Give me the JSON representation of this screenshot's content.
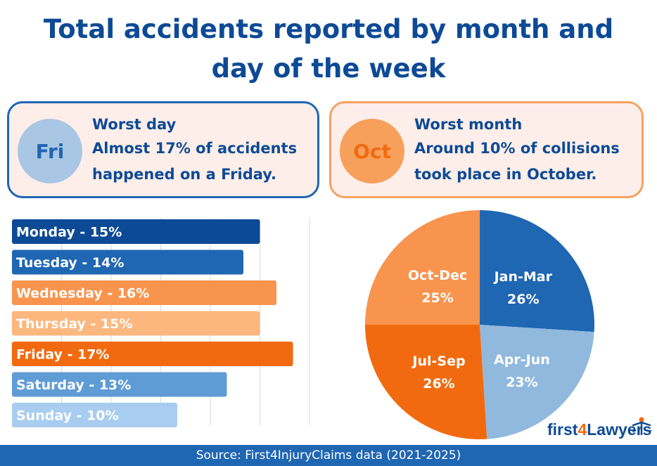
{
  "title_line1": "Total accidents reported by month and",
  "title_line2": "day of the week",
  "worst_day": {
    "badge": "Fri",
    "heading": "Worst day",
    "line1": "Almost 17% of accidents",
    "line2": "happened on a Friday."
  },
  "worst_month": {
    "badge": "Oct",
    "heading": "Worst month",
    "line1": "Around 10% of collisions",
    "line2": "took place in October."
  },
  "chart_data": [
    {
      "type": "bar",
      "orientation": "horizontal",
      "title": "",
      "categories": [
        "Monday",
        "Tuesday",
        "Wednesday",
        "Thursday",
        "Friday",
        "Saturday",
        "Sunday"
      ],
      "values": [
        15,
        14,
        16,
        15,
        17,
        13,
        10
      ],
      "unit": "%",
      "labels": [
        "Monday - 15%",
        "Tuesday - 14%",
        "Wednesday - 16%",
        "Thursday - 15%",
        "Friday - 17%",
        "Saturday - 13%",
        "Sunday - 10%"
      ],
      "colors": [
        "#0d4a96",
        "#1f66b3",
        "#f8944e",
        "#fcb77f",
        "#f26a0f",
        "#5f9cd6",
        "#a8cdf0"
      ],
      "xlim": [
        0,
        18
      ],
      "grid": true
    },
    {
      "type": "pie",
      "title": "",
      "categories": [
        "Jan-Mar",
        "Apr-Jun",
        "Jul-Sep",
        "Oct-Dec"
      ],
      "values": [
        26,
        23,
        26,
        25
      ],
      "value_labels": [
        "26%",
        "23%",
        "26%",
        "25%"
      ],
      "colors": [
        "#1f66b3",
        "#91b9dd",
        "#f26a0f",
        "#f8944e"
      ]
    }
  ],
  "logo": {
    "prefix": "first",
    "digit": "4",
    "suffix": "Lawyers"
  },
  "footer": "Source: First4InjuryClaims data (2021-2025)"
}
